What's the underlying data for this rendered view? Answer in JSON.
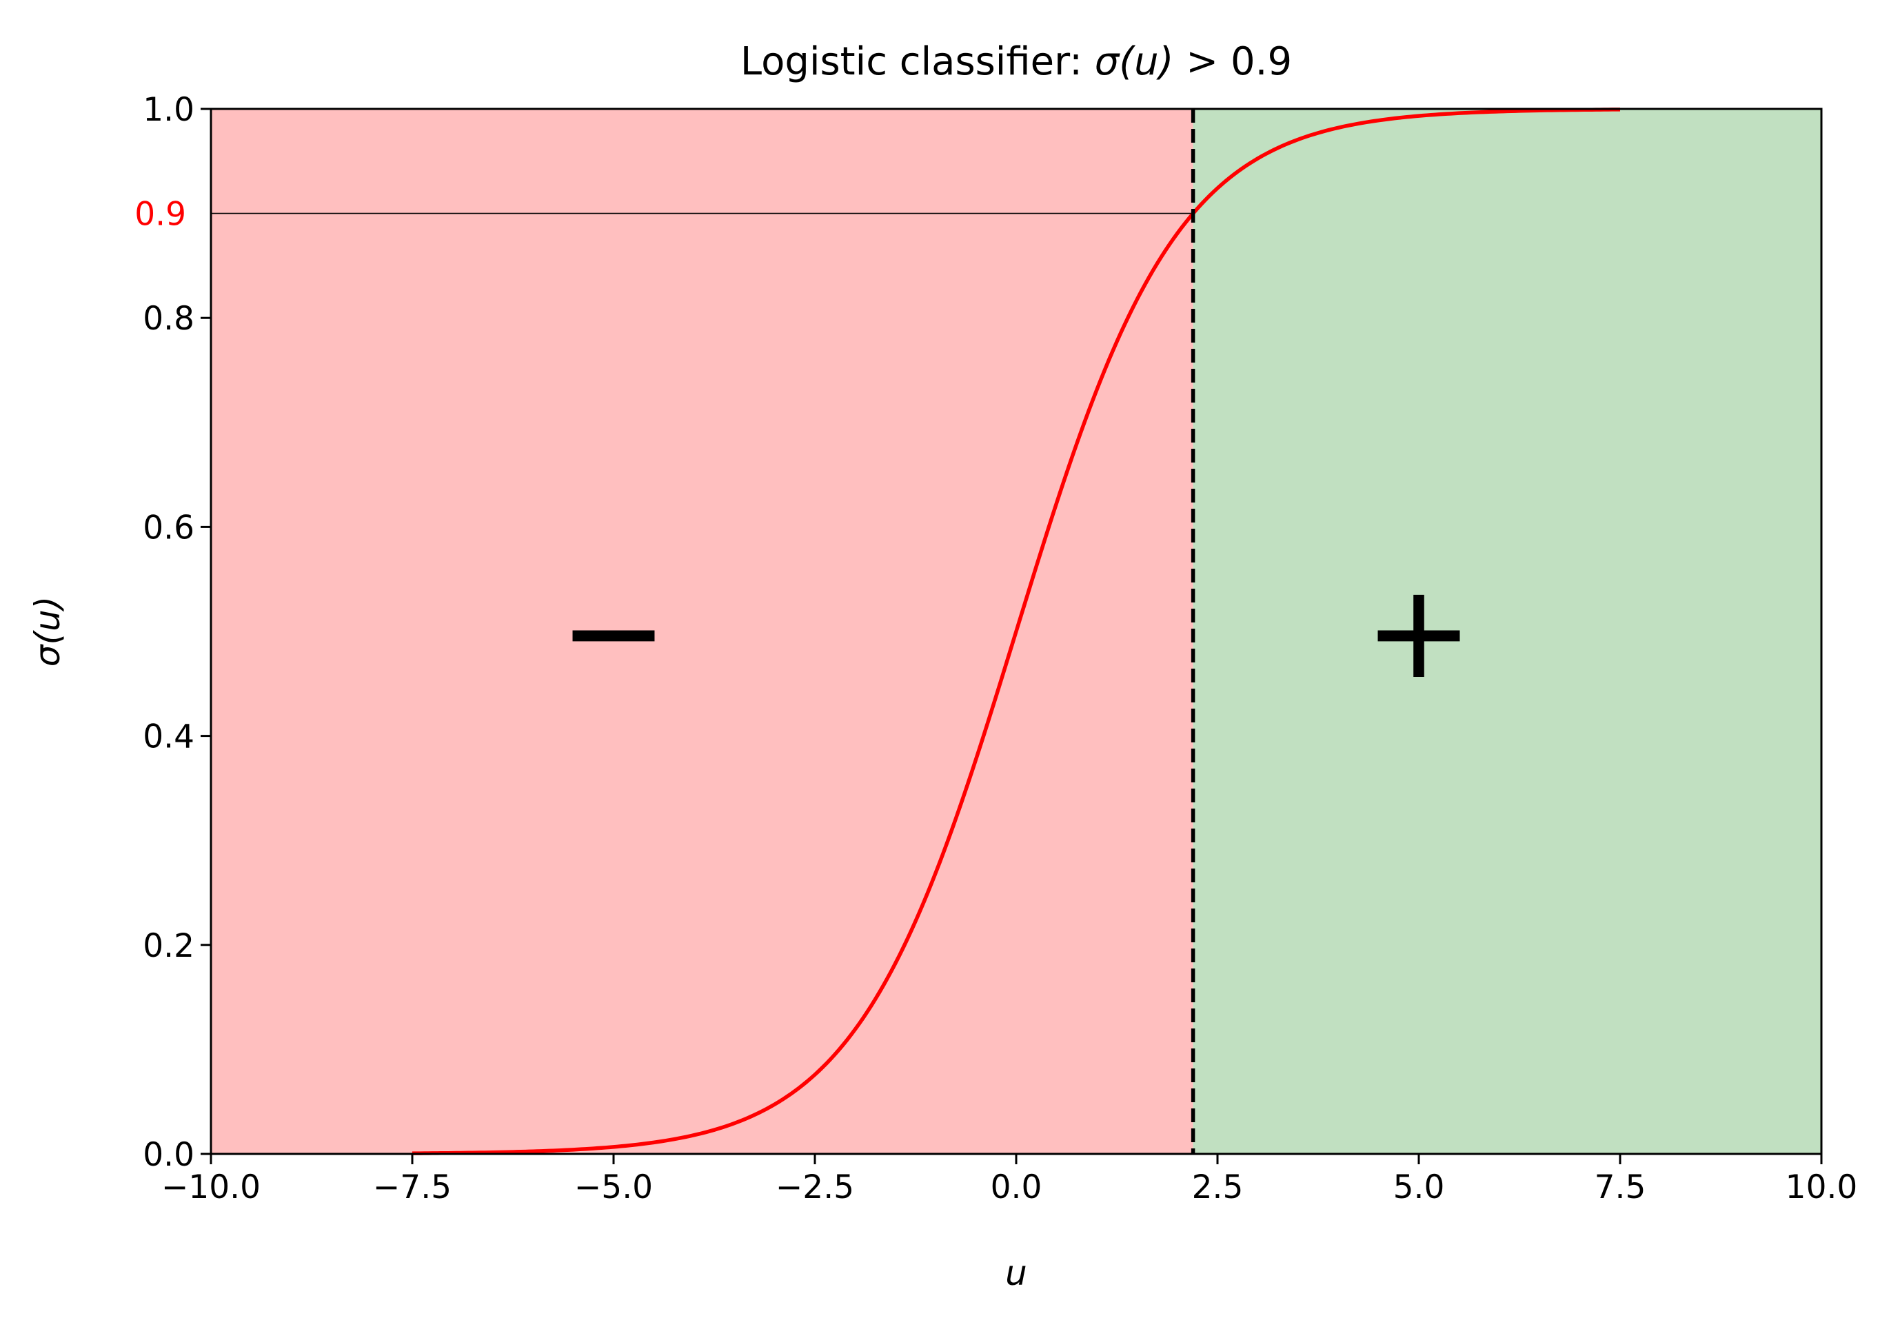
{
  "chart_data": {
    "type": "line",
    "title": "Logistic classifier: σ(u) > 0.9",
    "xlabel": "u",
    "ylabel": "σ(u)",
    "xlim": [
      -10.0,
      10.0
    ],
    "ylim": [
      0.0,
      1.0
    ],
    "xticks": [
      -10.0,
      -7.5,
      -5.0,
      -2.5,
      0.0,
      2.5,
      5.0,
      7.5,
      10.0
    ],
    "xtick_labels": [
      "−10.0",
      "−7.5",
      "−5.0",
      "−2.5",
      "0.0",
      "2.5",
      "5.0",
      "7.5",
      "10.0"
    ],
    "yticks": [
      0.0,
      0.2,
      0.4,
      0.6,
      0.8,
      1.0
    ],
    "ytick_labels": [
      "0.0",
      "0.2",
      "0.4",
      "0.6",
      "0.8",
      "1.0"
    ],
    "threshold": {
      "y": 0.9,
      "label": "0.9",
      "label_color": "#ff0000"
    },
    "decision_boundary_u": 2.197,
    "grid": false,
    "series": [
      {
        "color": "#ff0000",
        "function": "1/(1+exp(-u))",
        "x": [
          -7.5,
          -7.0,
          -6.5,
          -6.0,
          -5.5,
          -5.0,
          -4.5,
          -4.0,
          -3.5,
          -3.0,
          -2.5,
          -2.0,
          -1.5,
          -1.0,
          -0.5,
          0.0,
          0.5,
          1.0,
          1.5,
          2.0,
          2.5,
          3.0,
          3.5,
          4.0,
          4.5,
          5.0,
          5.5,
          6.0,
          6.5,
          7.0,
          7.5
        ],
        "y": [
          0.0006,
          0.0009,
          0.0015,
          0.0025,
          0.0041,
          0.0067,
          0.011,
          0.018,
          0.0293,
          0.0474,
          0.0759,
          0.1192,
          0.1824,
          0.2689,
          0.3775,
          0.5,
          0.6225,
          0.7311,
          0.8176,
          0.8808,
          0.9241,
          0.9526,
          0.9707,
          0.982,
          0.989,
          0.9933,
          0.9959,
          0.9975,
          0.9985,
          0.9991,
          0.9994
        ]
      }
    ],
    "regions": [
      {
        "label": "−",
        "x_range": [
          -10.0,
          2.197
        ],
        "color": "#ffbfbf",
        "label_x": -5.0,
        "label_y": 0.5
      },
      {
        "label": "+",
        "x_range": [
          2.197,
          10.0
        ],
        "color": "#c1e0c1",
        "label_x": 5.0,
        "label_y": 0.5
      }
    ]
  }
}
